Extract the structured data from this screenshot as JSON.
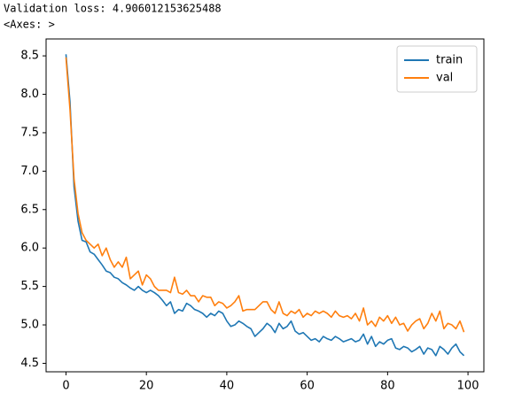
{
  "output": {
    "line1": "Validation loss:  4.906012153625488",
    "line2": "<Axes: >"
  },
  "chart_data": {
    "type": "line",
    "x": [
      0,
      1,
      2,
      3,
      4,
      5,
      6,
      7,
      8,
      9,
      10,
      11,
      12,
      13,
      14,
      15,
      16,
      17,
      18,
      19,
      20,
      21,
      22,
      23,
      24,
      25,
      26,
      27,
      28,
      29,
      30,
      31,
      32,
      33,
      34,
      35,
      36,
      37,
      38,
      39,
      40,
      41,
      42,
      43,
      44,
      45,
      46,
      47,
      48,
      49,
      50,
      51,
      52,
      53,
      54,
      55,
      56,
      57,
      58,
      59,
      60,
      61,
      62,
      63,
      64,
      65,
      66,
      67,
      68,
      69,
      70,
      71,
      72,
      73,
      74,
      75,
      76,
      77,
      78,
      79,
      80,
      81,
      82,
      83,
      84,
      85,
      86,
      87,
      88,
      89,
      90,
      91,
      92,
      93,
      94,
      95,
      96,
      97,
      98,
      99
    ],
    "series": [
      {
        "name": "train",
        "color": "#1f77b4",
        "values": [
          8.52,
          7.9,
          6.8,
          6.35,
          6.1,
          6.08,
          5.95,
          5.92,
          5.85,
          5.78,
          5.7,
          5.68,
          5.62,
          5.6,
          5.55,
          5.52,
          5.48,
          5.45,
          5.5,
          5.45,
          5.42,
          5.45,
          5.42,
          5.38,
          5.32,
          5.25,
          5.3,
          5.15,
          5.2,
          5.18,
          5.28,
          5.25,
          5.2,
          5.18,
          5.15,
          5.1,
          5.15,
          5.12,
          5.18,
          5.15,
          5.05,
          4.98,
          5.0,
          5.05,
          5.02,
          4.98,
          4.95,
          4.85,
          4.9,
          4.95,
          5.02,
          4.98,
          4.9,
          5.02,
          4.95,
          4.98,
          5.05,
          4.92,
          4.88,
          4.9,
          4.85,
          4.8,
          4.82,
          4.78,
          4.85,
          4.82,
          4.8,
          4.85,
          4.82,
          4.78,
          4.8,
          4.82,
          4.78,
          4.8,
          4.88,
          4.75,
          4.85,
          4.72,
          4.78,
          4.75,
          4.8,
          4.82,
          4.7,
          4.68,
          4.72,
          4.7,
          4.65,
          4.68,
          4.72,
          4.62,
          4.7,
          4.68,
          4.6,
          4.72,
          4.68,
          4.62,
          4.7,
          4.75,
          4.65,
          4.6
        ]
      },
      {
        "name": "val",
        "color": "#ff7f0e",
        "values": [
          8.48,
          7.8,
          6.9,
          6.45,
          6.2,
          6.1,
          6.05,
          6.0,
          6.05,
          5.9,
          6.0,
          5.85,
          5.75,
          5.82,
          5.75,
          5.88,
          5.6,
          5.65,
          5.7,
          5.52,
          5.65,
          5.6,
          5.5,
          5.45,
          5.45,
          5.45,
          5.42,
          5.62,
          5.42,
          5.4,
          5.45,
          5.38,
          5.38,
          5.3,
          5.38,
          5.36,
          5.36,
          5.25,
          5.3,
          5.28,
          5.22,
          5.25,
          5.3,
          5.38,
          5.18,
          5.2,
          5.2,
          5.2,
          5.25,
          5.3,
          5.3,
          5.2,
          5.15,
          5.3,
          5.15,
          5.12,
          5.18,
          5.15,
          5.2,
          5.1,
          5.15,
          5.12,
          5.18,
          5.15,
          5.18,
          5.15,
          5.1,
          5.18,
          5.12,
          5.1,
          5.12,
          5.08,
          5.15,
          5.05,
          5.22,
          5.0,
          5.05,
          4.98,
          5.1,
          5.05,
          5.12,
          5.02,
          5.1,
          5.0,
          5.02,
          4.92,
          5.0,
          5.05,
          5.08,
          4.95,
          5.02,
          5.15,
          5.05,
          5.18,
          4.95,
          5.02,
          5.0,
          4.95,
          5.05,
          4.906
        ]
      }
    ],
    "xlim": [
      -4.95,
      103.95
    ],
    "xticks": [
      0,
      20,
      40,
      60,
      80,
      100
    ],
    "ylim": [
      4.39,
      8.72
    ],
    "yticks": [
      4.5,
      {
        "value": 5,
        "label": "5.0"
      },
      5.5,
      {
        "value": 6,
        "label": "6.0"
      },
      6.5,
      {
        "value": 7,
        "label": "7.0"
      },
      7.5,
      {
        "value": 8,
        "label": "8.0"
      },
      8.5
    ],
    "legend": "upper right",
    "grid": false
  }
}
